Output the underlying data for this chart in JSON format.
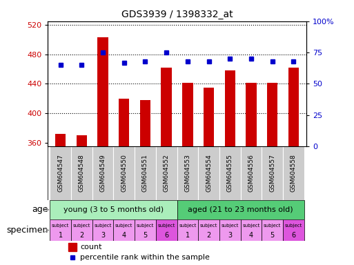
{
  "title": "GDS3939 / 1398332_at",
  "samples": [
    "GSM604547",
    "GSM604548",
    "GSM604549",
    "GSM604550",
    "GSM604551",
    "GSM604552",
    "GSM604553",
    "GSM604554",
    "GSM604555",
    "GSM604556",
    "GSM604557",
    "GSM604558"
  ],
  "counts": [
    372,
    370,
    503,
    420,
    418,
    462,
    441,
    435,
    458,
    441,
    441,
    462
  ],
  "percentile_ranks": [
    65,
    65,
    75,
    67,
    68,
    75,
    68,
    68,
    70,
    70,
    68,
    68
  ],
  "ylim_left": [
    355,
    525
  ],
  "ylim_right": [
    0,
    100
  ],
  "yticks_left": [
    360,
    400,
    440,
    480,
    520
  ],
  "yticks_right": [
    0,
    25,
    50,
    75,
    100
  ],
  "bar_color": "#cc0000",
  "dot_color": "#0000cc",
  "bar_bottom": 355,
  "age_groups": [
    {
      "label": "young (3 to 5 months old)",
      "start": 0,
      "end": 6,
      "color": "#aaeebb"
    },
    {
      "label": "aged (21 to 23 months old)",
      "start": 6,
      "end": 12,
      "color": "#55cc77"
    }
  ],
  "specimen_labels": [
    "1",
    "2",
    "3",
    "4",
    "5",
    "6",
    "1",
    "2",
    "3",
    "4",
    "5",
    "6"
  ],
  "specimen_colors": [
    "#ee99ee",
    "#ee99ee",
    "#ee99ee",
    "#ee99ee",
    "#ee99ee",
    "#dd55dd",
    "#ee99ee",
    "#ee99ee",
    "#ee99ee",
    "#ee99ee",
    "#ee99ee",
    "#dd55dd"
  ],
  "xlabel_color": "#cc0000",
  "ylabel_right_color": "#0000cc",
  "tick_bg_color": "#cccccc",
  "arrow_color": "#999999",
  "figsize": [
    5.13,
    3.84
  ],
  "dpi": 100
}
